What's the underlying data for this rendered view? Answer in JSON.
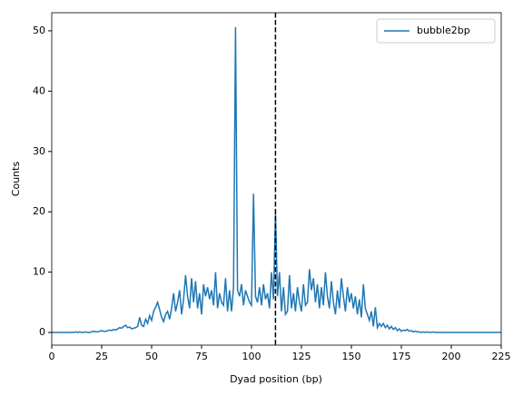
{
  "chart_data": {
    "type": "line",
    "xlabel": "Dyad position (bp)",
    "ylabel": "Counts",
    "x": [
      0,
      1,
      2,
      3,
      4,
      5,
      6,
      7,
      8,
      9,
      10,
      11,
      12,
      13,
      14,
      15,
      16,
      17,
      18,
      19,
      20,
      21,
      22,
      23,
      24,
      25,
      26,
      27,
      28,
      29,
      30,
      31,
      32,
      33,
      34,
      35,
      36,
      37,
      38,
      39,
      40,
      41,
      42,
      43,
      44,
      45,
      46,
      47,
      48,
      49,
      50,
      51,
      52,
      53,
      54,
      55,
      56,
      57,
      58,
      59,
      60,
      61,
      62,
      63,
      64,
      65,
      66,
      67,
      68,
      69,
      70,
      71,
      72,
      73,
      74,
      75,
      76,
      77,
      78,
      79,
      80,
      81,
      82,
      83,
      84,
      85,
      86,
      87,
      88,
      89,
      90,
      91,
      92,
      93,
      94,
      95,
      96,
      97,
      98,
      99,
      100,
      101,
      102,
      103,
      104,
      105,
      106,
      107,
      108,
      109,
      110,
      111,
      112,
      113,
      114,
      115,
      116,
      117,
      118,
      119,
      120,
      121,
      122,
      123,
      124,
      125,
      126,
      127,
      128,
      129,
      130,
      131,
      132,
      133,
      134,
      135,
      136,
      137,
      138,
      139,
      140,
      141,
      142,
      143,
      144,
      145,
      146,
      147,
      148,
      149,
      150,
      151,
      152,
      153,
      154,
      155,
      156,
      157,
      158,
      159,
      160,
      161,
      162,
      163,
      164,
      165,
      166,
      167,
      168,
      169,
      170,
      171,
      172,
      173,
      174,
      175,
      176,
      177,
      178,
      179,
      180,
      181,
      182,
      183,
      184,
      185,
      186,
      187,
      188,
      189,
      190,
      191,
      192,
      193,
      194,
      195,
      196,
      197,
      198,
      199,
      200,
      201,
      202,
      203,
      204,
      205,
      206,
      207,
      208,
      209,
      210,
      211,
      212,
      213,
      214,
      215,
      216,
      217,
      218,
      219,
      220,
      221,
      222,
      223,
      224,
      225
    ],
    "series": [
      {
        "name": "bubble2bp",
        "color": "#1f77b4",
        "values": [
          0,
          0,
          0,
          0,
          0,
          0,
          0,
          0,
          0,
          0,
          0,
          0,
          0.1,
          0,
          0.1,
          0,
          0,
          0.1,
          0,
          0,
          0.1,
          0.2,
          0.1,
          0.1,
          0.2,
          0.3,
          0.2,
          0.2,
          0.3,
          0.4,
          0.3,
          0.5,
          0.4,
          0.6,
          0.8,
          0.7,
          1.0,
          1.2,
          0.8,
          0.9,
          0.6,
          0.7,
          0.8,
          1.0,
          2.5,
          1.2,
          1.0,
          2.2,
          1.5,
          2.8,
          2.0,
          3.5,
          4.2,
          5.0,
          3.8,
          2.5,
          1.8,
          3.0,
          3.5,
          2.2,
          4.0,
          6.5,
          3.5,
          5.0,
          7.0,
          3.0,
          5.5,
          9.5,
          6.0,
          4.0,
          9.0,
          5.0,
          8.5,
          4.0,
          6.5,
          3.0,
          8.0,
          6.0,
          7.5,
          5.5,
          7.0,
          4.5,
          10.0,
          4.0,
          6.5,
          5.0,
          4.5,
          9.0,
          3.5,
          7.0,
          3.5,
          7.5,
          50.6,
          7.0,
          6.0,
          8.0,
          4.5,
          7.0,
          6.0,
          5.0,
          4.5,
          23.0,
          6.0,
          5.0,
          7.5,
          4.5,
          8.0,
          5.5,
          6.5,
          4.0,
          10.0,
          5.5,
          20.0,
          6.0,
          10.0,
          3.5,
          7.5,
          3.0,
          3.5,
          9.5,
          4.0,
          6.5,
          3.5,
          7.5,
          5.0,
          3.5,
          8.0,
          4.5,
          5.0,
          10.5,
          7.0,
          9.0,
          5.0,
          8.0,
          4.0,
          7.5,
          4.5,
          10.0,
          6.0,
          4.0,
          8.5,
          5.0,
          3.0,
          7.0,
          4.0,
          9.0,
          6.0,
          3.5,
          7.5,
          5.0,
          6.5,
          4.0,
          6.0,
          3.0,
          5.5,
          2.5,
          8.0,
          4.0,
          3.0,
          2.0,
          3.5,
          1.0,
          4.2,
          0.8,
          1.5,
          1.0,
          1.5,
          0.8,
          1.2,
          0.6,
          1.0,
          0.5,
          0.8,
          0.3,
          0.6,
          0.2,
          0.4,
          0.3,
          0.5,
          0.2,
          0.3,
          0.1,
          0.2,
          0.1,
          0.1,
          0,
          0.1,
          0,
          0.1,
          0,
          0,
          0.1,
          0,
          0,
          0,
          0,
          0,
          0,
          0,
          0,
          0,
          0,
          0,
          0,
          0,
          0,
          0,
          0,
          0,
          0,
          0,
          0,
          0,
          0,
          0,
          0,
          0,
          0,
          0,
          0,
          0,
          0,
          0,
          0,
          0,
          0
        ]
      }
    ],
    "vline": 112,
    "xlim": [
      0,
      225
    ],
    "xticks": [
      0,
      25,
      50,
      75,
      100,
      125,
      150,
      175,
      200,
      225
    ],
    "ylim": [
      -2.1,
      53
    ],
    "yticks": [
      0,
      10,
      20,
      30,
      40,
      50
    ],
    "legend": "upper right"
  }
}
